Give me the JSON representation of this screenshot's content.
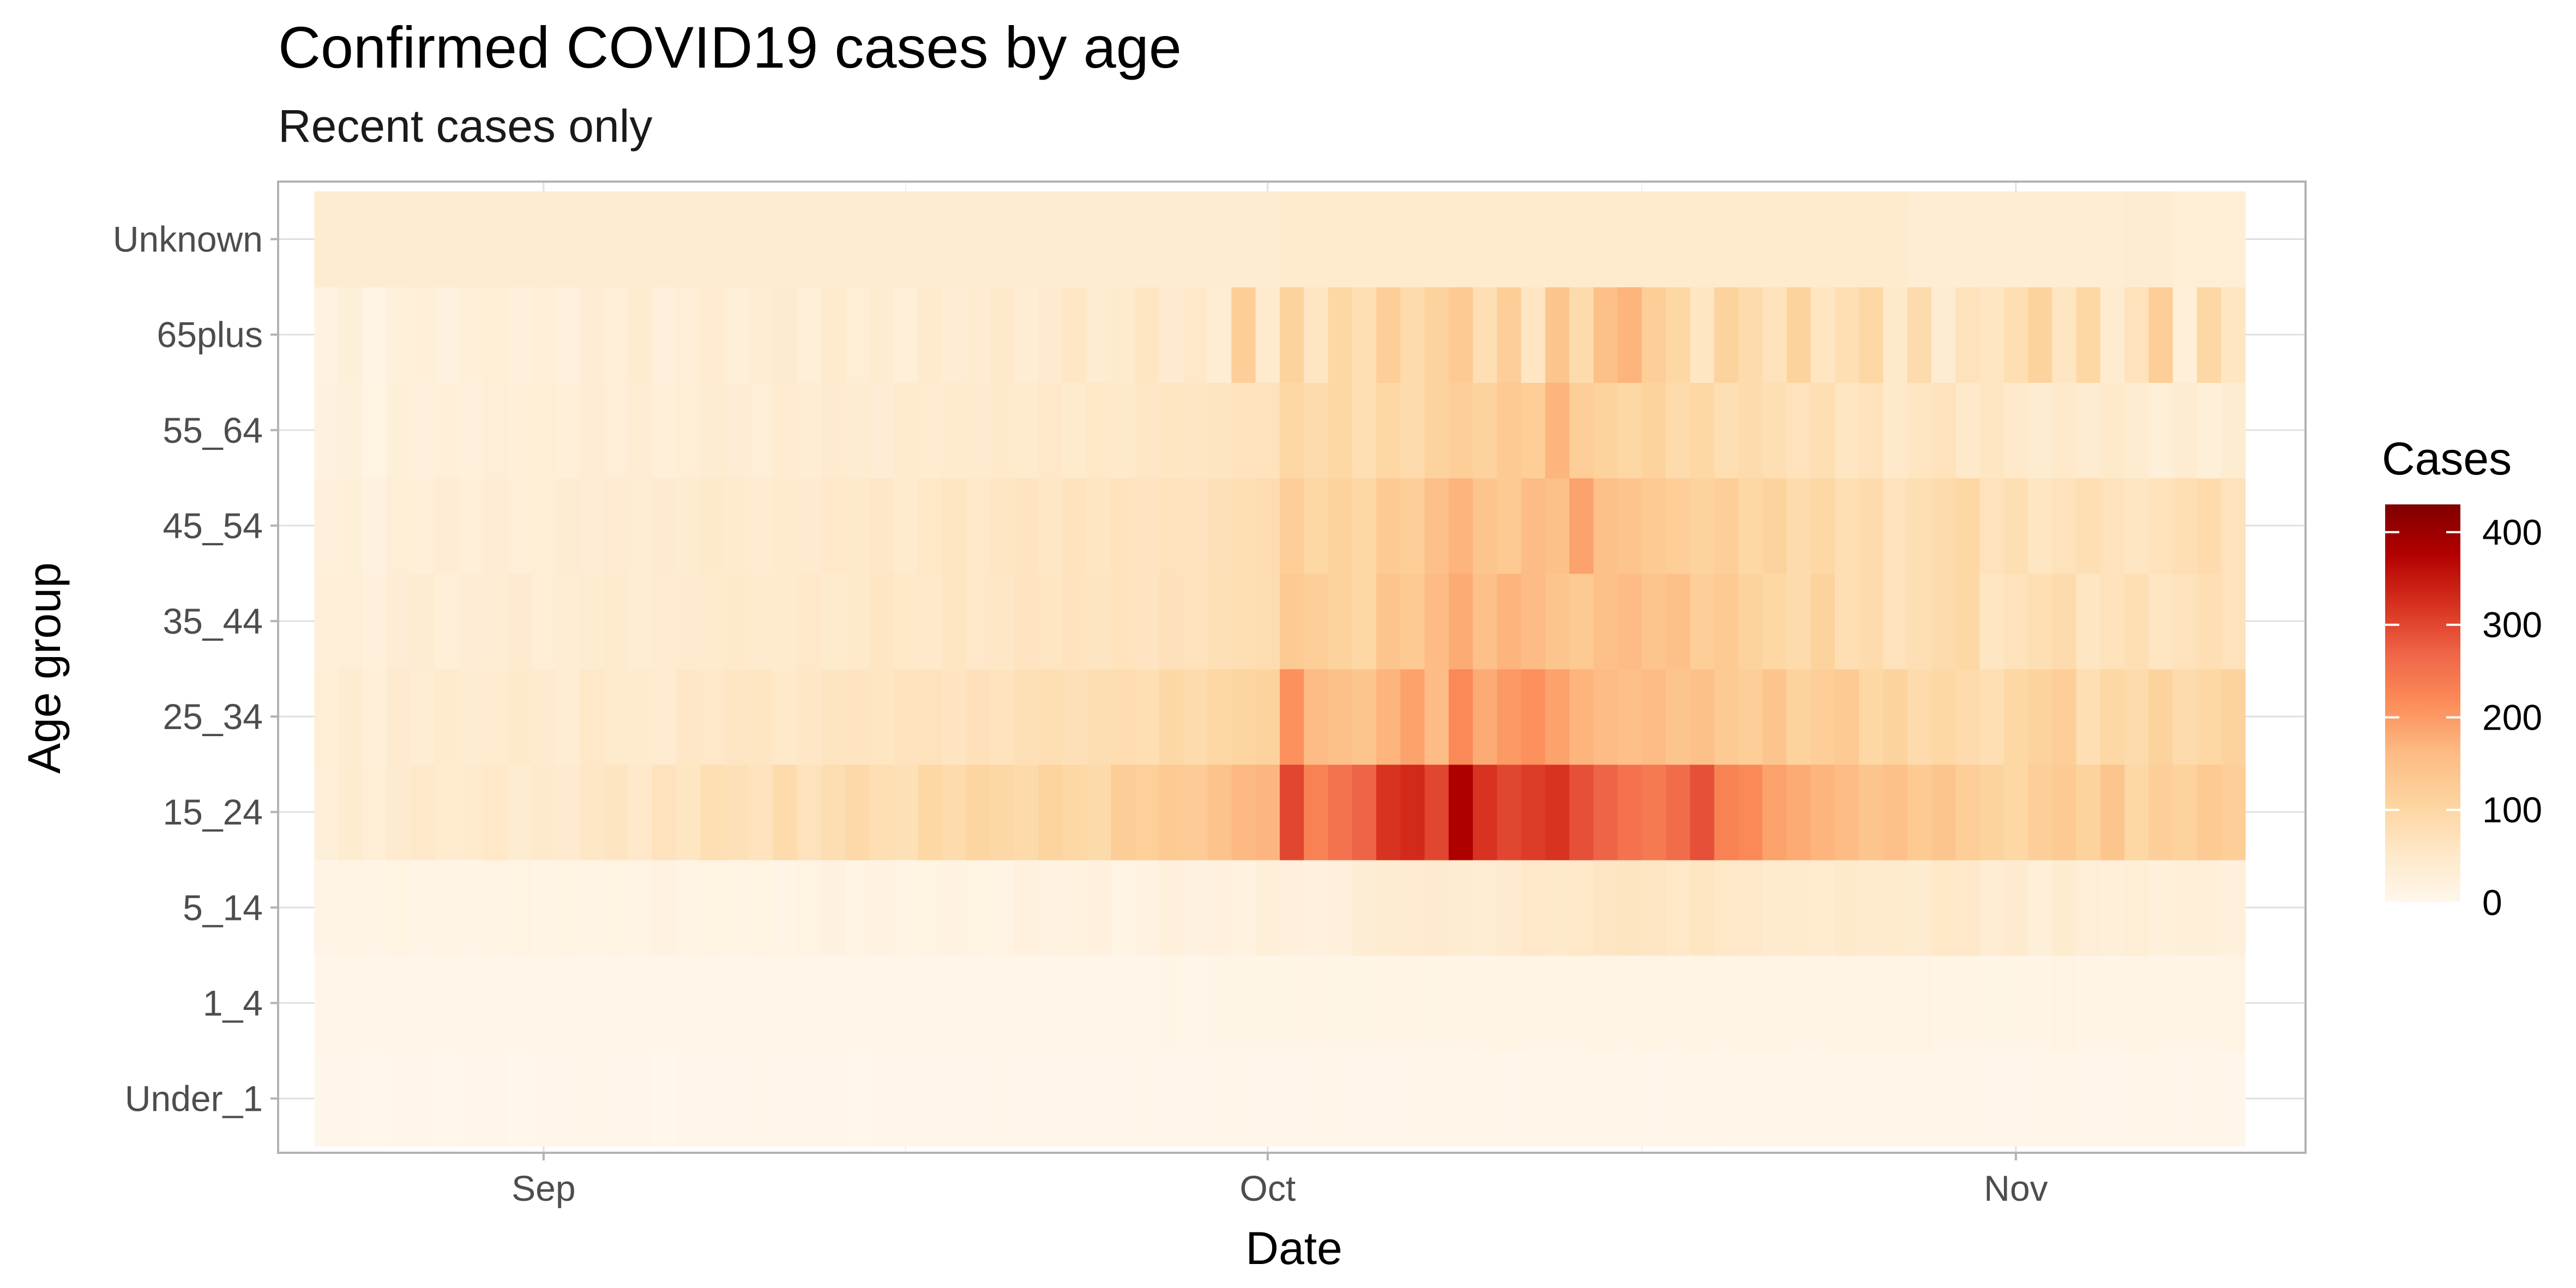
{
  "chart_data": {
    "type": "heatmap",
    "title": "Confirmed COVID19 cases by age",
    "subtitle": "Recent cases only",
    "xlabel": "Date",
    "ylabel": "Age group",
    "x_start": "2020-08-23",
    "x_end": "2020-11-10",
    "xlim": [
      "2020-08-21",
      "2020-11-13"
    ],
    "x_ticks": [
      {
        "date": "2020-09-01",
        "label": "Sep"
      },
      {
        "date": "2020-10-01",
        "label": "Oct"
      },
      {
        "date": "2020-11-01",
        "label": "Nov"
      }
    ],
    "age_groups": [
      "Under_1",
      "1_4",
      "5_14",
      "15_24",
      "25_34",
      "35_44",
      "45_54",
      "55_64",
      "65plus",
      "Unknown"
    ],
    "series": [
      {
        "name": "Under_1",
        "values": [
          2,
          2,
          1,
          2,
          2,
          1,
          2,
          2,
          1,
          2,
          2,
          3,
          2,
          2,
          1,
          2,
          2,
          2,
          3,
          2,
          2,
          2,
          1,
          2,
          2,
          2,
          2,
          2,
          3,
          2,
          2,
          2,
          2,
          2,
          3,
          2,
          2,
          3,
          3,
          2,
          2,
          3,
          3,
          2,
          2,
          3,
          3,
          3,
          3,
          2,
          3,
          3,
          3,
          3,
          3,
          2,
          3,
          3,
          4,
          3,
          3,
          3,
          4,
          3,
          4,
          3,
          3,
          3,
          4,
          2,
          2,
          3,
          4,
          2,
          2,
          3,
          4,
          2,
          3,
          2
        ]
      },
      {
        "name": "1_4",
        "values": [
          5,
          4,
          3,
          5,
          5,
          6,
          5,
          4,
          5,
          6,
          4,
          5,
          5,
          6,
          5,
          5,
          6,
          6,
          5,
          5,
          6,
          5,
          5,
          6,
          4,
          5,
          5,
          5,
          6,
          5,
          5,
          5,
          6,
          6,
          5,
          7,
          6,
          7,
          7,
          8,
          7,
          9,
          8,
          8,
          9,
          10,
          8,
          10,
          10,
          12,
          9,
          10,
          10,
          12,
          10,
          14,
          11,
          13,
          10,
          12,
          13,
          10,
          11,
          14,
          12,
          12,
          13,
          11,
          9,
          7,
          8,
          11,
          13,
          9,
          9,
          12,
          10,
          10,
          11,
          12
        ]
      },
      {
        "name": "5_14",
        "values": [
          10,
          13,
          9,
          15,
          11,
          14,
          10,
          14,
          15,
          11,
          16,
          12,
          15,
          14,
          17,
          12,
          16,
          14,
          15,
          11,
          16,
          20,
          14,
          17,
          12,
          15,
          18,
          15,
          14,
          21,
          17,
          19,
          22,
          14,
          18,
          25,
          20,
          22,
          19,
          28,
          24,
          22,
          25,
          35,
          40,
          42,
          45,
          40,
          38,
          44,
          52,
          50,
          55,
          58,
          62,
          58,
          55,
          60,
          54,
          52,
          45,
          48,
          42,
          50,
          44,
          46,
          40,
          55,
          52,
          38,
          44,
          30,
          40,
          32,
          28,
          34,
          25,
          30,
          28,
          26
        ]
      },
      {
        "name": "15_24",
        "values": [
          30,
          40,
          34,
          44,
          52,
          42,
          48,
          54,
          40,
          50,
          44,
          56,
          62,
          52,
          70,
          60,
          80,
          74,
          66,
          88,
          70,
          82,
          94,
          80,
          76,
          98,
          90,
          104,
          96,
          92,
          108,
          100,
          92,
          122,
          116,
          130,
          126,
          144,
          164,
          168,
          300,
          230,
          250,
          270,
          320,
          330,
          300,
          380,
          320,
          300,
          310,
          320,
          290,
          270,
          250,
          240,
          260,
          290,
          230,
          220,
          190,
          180,
          170,
          160,
          140,
          150,
          130,
          140,
          120,
          110,
          100,
          120,
          130,
          110,
          140,
          100,
          120,
          110,
          130,
          120
        ]
      },
      {
        "name": "25_34",
        "values": [
          34,
          40,
          30,
          44,
          38,
          46,
          40,
          42,
          50,
          44,
          38,
          54,
          48,
          46,
          42,
          56,
          52,
          58,
          60,
          50,
          56,
          62,
          64,
          60,
          66,
          70,
          64,
          72,
          68,
          76,
          80,
          74,
          82,
          86,
          80,
          96,
          90,
          100,
          104,
          110,
          210,
          160,
          150,
          140,
          170,
          190,
          160,
          220,
          180,
          200,
          210,
          190,
          170,
          160,
          150,
          160,
          140,
          150,
          130,
          120,
          140,
          110,
          120,
          130,
          100,
          110,
          90,
          100,
          90,
          80,
          100,
          110,
          120,
          80,
          100,
          90,
          110,
          90,
          100,
          110
        ]
      },
      {
        "name": "35_44",
        "values": [
          30,
          32,
          24,
          36,
          40,
          30,
          36,
          38,
          44,
          34,
          38,
          40,
          46,
          38,
          42,
          44,
          46,
          50,
          48,
          44,
          52,
          46,
          50,
          58,
          54,
          50,
          60,
          52,
          56,
          64,
          60,
          66,
          62,
          68,
          64,
          72,
          70,
          76,
          80,
          84,
          130,
          120,
          110,
          100,
          140,
          130,
          160,
          180,
          150,
          170,
          160,
          140,
          130,
          150,
          160,
          140,
          150,
          120,
          130,
          110,
          100,
          90,
          110,
          80,
          90,
          70,
          80,
          90,
          100,
          60,
          70,
          80,
          90,
          60,
          70,
          80,
          60,
          70,
          80,
          70
        ]
      },
      {
        "name": "45_54",
        "values": [
          26,
          30,
          20,
          34,
          28,
          36,
          30,
          38,
          32,
          34,
          40,
          36,
          42,
          38,
          44,
          40,
          50,
          46,
          42,
          48,
          44,
          52,
          50,
          56,
          48,
          54,
          60,
          52,
          58,
          64,
          56,
          66,
          60,
          68,
          64,
          70,
          66,
          74,
          80,
          84,
          120,
          100,
          110,
          100,
          130,
          120,
          150,
          170,
          140,
          130,
          160,
          150,
          190,
          150,
          140,
          130,
          120,
          110,
          120,
          100,
          110,
          90,
          100,
          80,
          90,
          70,
          80,
          90,
          100,
          70,
          80,
          60,
          70,
          80,
          70,
          60,
          70,
          80,
          90,
          70
        ]
      },
      {
        "name": "55_64",
        "values": [
          20,
          24,
          16,
          28,
          24,
          30,
          26,
          32,
          28,
          34,
          30,
          36,
          32,
          38,
          28,
          34,
          40,
          36,
          32,
          42,
          38,
          44,
          40,
          36,
          46,
          42,
          48,
          44,
          50,
          46,
          52,
          48,
          54,
          50,
          56,
          60,
          58,
          62,
          66,
          70,
          100,
          90,
          100,
          80,
          100,
          90,
          110,
          120,
          110,
          130,
          120,
          170,
          120,
          110,
          100,
          110,
          90,
          100,
          80,
          90,
          80,
          70,
          80,
          60,
          70,
          50,
          60,
          70,
          50,
          60,
          50,
          40,
          50,
          40,
          50,
          40,
          30,
          40,
          30,
          40
        ]
      },
      {
        "name": "65plus",
        "values": [
          18,
          28,
          14,
          24,
          30,
          20,
          28,
          34,
          24,
          30,
          22,
          36,
          28,
          40,
          26,
          32,
          42,
          30,
          38,
          44,
          28,
          46,
          34,
          40,
          30,
          48,
          36,
          42,
          50,
          38,
          44,
          56,
          40,
          48,
          60,
          44,
          52,
          38,
          120,
          46,
          110,
          60,
          100,
          80,
          120,
          90,
          110,
          130,
          80,
          120,
          60,
          140,
          90,
          150,
          170,
          120,
          100,
          60,
          110,
          90,
          70,
          110,
          60,
          80,
          100,
          50,
          90,
          40,
          70,
          60,
          80,
          110,
          60,
          100,
          40,
          70,
          120,
          30,
          100,
          60
        ]
      },
      {
        "name": "Unknown",
        "values": [
          40,
          40,
          40,
          40,
          40,
          40,
          40,
          40,
          40,
          40,
          40,
          40,
          40,
          40,
          40,
          40,
          40,
          40,
          40,
          40,
          40,
          40,
          40,
          40,
          40,
          40,
          40,
          40,
          40,
          40,
          40,
          40,
          40,
          40,
          40,
          40,
          40,
          40,
          40,
          40,
          48,
          48,
          48,
          48,
          48,
          48,
          48,
          48,
          48,
          48,
          48,
          48,
          48,
          48,
          48,
          48,
          48,
          48,
          48,
          48,
          48,
          48,
          48,
          48,
          48,
          48,
          38,
          38,
          38,
          38,
          38,
          38,
          38,
          38,
          38,
          40,
          40,
          34,
          34,
          34
        ]
      }
    ],
    "color_scale": {
      "title": "Cases",
      "min": 0,
      "max": 430,
      "ticks": [
        0,
        100,
        200,
        300,
        400
      ],
      "colors": [
        "#fff7ec",
        "#fee8c8",
        "#fdd49e",
        "#fdbb84",
        "#fc8d59",
        "#ef6548",
        "#d7301f",
        "#b30000",
        "#7f0000"
      ]
    },
    "grid": true,
    "legend_position": "right"
  }
}
